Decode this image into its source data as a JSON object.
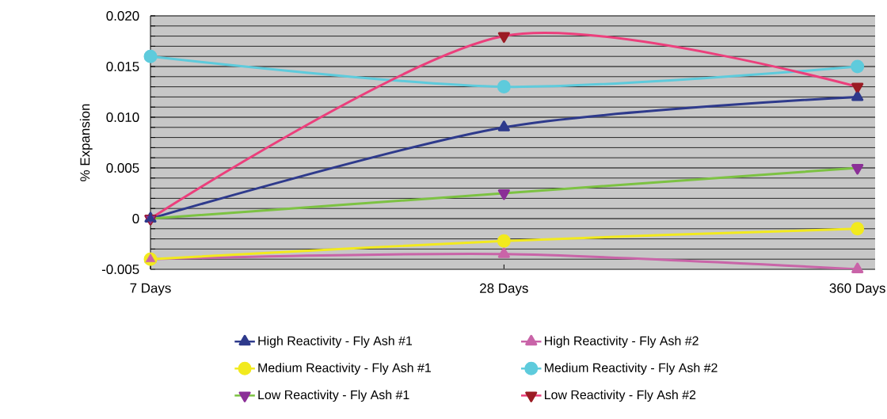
{
  "chart_data": {
    "type": "line",
    "ylabel": "% Expansion",
    "categories": [
      "7 Days",
      "28 Days",
      "360 Days"
    ],
    "series": [
      {
        "name": "High Reactivity - Fly Ash #1",
        "color": "#2e3a8c",
        "marker": "triangle",
        "values": [
          0,
          0.009,
          0.012
        ]
      },
      {
        "name": "High Reactivity - Fly Ash #2",
        "color": "#c964a8",
        "marker": "triangle",
        "values": [
          -0.004,
          -0.0035,
          -0.005
        ]
      },
      {
        "name": "Medium Reactivity - Fly Ash #1",
        "color": "#f2ea1e",
        "marker": "circle",
        "values": [
          -0.004,
          -0.0022,
          -0.001
        ]
      },
      {
        "name": "Medium Reactivity - Fly Ash #2",
        "color": "#5ecbdc",
        "marker": "circle",
        "values": [
          0.016,
          0.013,
          0.015
        ]
      },
      {
        "name": "Low Reactivity - Fly Ash #1",
        "color": "#7cc242",
        "colors": [
          "#8b2f97",
          "#8b2f97",
          "#8b2f97"
        ],
        "marker": "triangle-down",
        "values": [
          0,
          0.0025,
          0.005
        ]
      },
      {
        "name": "Low Reactivity - Fly Ash #2",
        "color": "#ec3f7c",
        "colors": [
          "#9b1c24",
          "#9b1c24",
          "#9b1c24"
        ],
        "marker": "triangle-down",
        "values": [
          0,
          0.018,
          0.013
        ]
      }
    ],
    "ylim": [
      -0.005,
      0.02
    ],
    "yticks": [
      {
        "value": 0.02,
        "label": "0.020"
      },
      0.015,
      {
        "value": 0.01,
        "label": "0.010"
      },
      0.005,
      0,
      -0.005
    ],
    "grid": "y",
    "legend": "bottom",
    "line_style": "solid"
  }
}
